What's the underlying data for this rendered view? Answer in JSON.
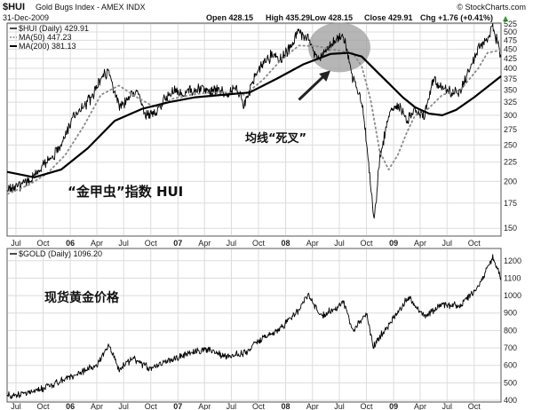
{
  "header": {
    "symbol": "$HUI",
    "name": "Gold Bugs Index - AMEX INDX",
    "date": "31-Dec-2009",
    "open": "Open 428.15",
    "high": "High 435.29",
    "low": "Low 428.15",
    "close": "Close 429.91",
    "chg": "Chg +1.76 (+0.41%)",
    "chg_arrow": "▲",
    "credit": "© StockCharts.com"
  },
  "colors": {
    "background": "#ffffff",
    "price_line": "#000000",
    "ma50": "#8a8a8a",
    "ma200": "#000000",
    "highlight": "#9e9e9e",
    "grid": "#dcdcdc"
  },
  "chart_data": [
    {
      "type": "line",
      "title": "$HUI (Daily) 429.91",
      "y_scale": "log",
      "ylim": [
        143,
        528
      ],
      "yticks": [
        150,
        175,
        200,
        225,
        250,
        275,
        300,
        325,
        350,
        375,
        400,
        425,
        450,
        475,
        500,
        525
      ],
      "grid": true,
      "legend_position": "top-left",
      "legend": [
        "$HUI (Daily) 429.91",
        "MA(50) 447.23",
        "MA(200) 381.13"
      ],
      "xlim": [
        "2005-06-01",
        "2009-12-31"
      ],
      "x_tick_labels": [
        "Jul",
        "Oct",
        "06",
        "Apr",
        "Jul",
        "Oct",
        "07",
        "Apr",
        "Jul",
        "Oct",
        "08",
        "Apr",
        "Jul",
        "Oct",
        "09",
        "Apr",
        "Jul",
        "Oct"
      ],
      "x_tick_dates": [
        "2005-07-01",
        "2005-10-01",
        "2006-01-01",
        "2006-04-01",
        "2006-07-01",
        "2006-10-01",
        "2007-01-01",
        "2007-04-01",
        "2007-07-01",
        "2007-10-01",
        "2008-01-01",
        "2008-04-01",
        "2008-07-01",
        "2008-10-01",
        "2009-01-01",
        "2009-04-01",
        "2009-07-01",
        "2009-10-01"
      ],
      "x_tick_bold": [
        false,
        false,
        true,
        false,
        false,
        false,
        true,
        false,
        false,
        false,
        true,
        false,
        false,
        false,
        true,
        false,
        false,
        false
      ],
      "series": [
        {
          "name": "$HUI (Daily) 429.91",
          "style": "price",
          "x": [
            "2005-06-01",
            "2005-07-15",
            "2005-08-15",
            "2005-09-15",
            "2005-10-15",
            "2005-11-15",
            "2005-12-15",
            "2006-01-15",
            "2006-02-15",
            "2006-03-15",
            "2006-04-15",
            "2006-05-10",
            "2006-06-15",
            "2006-07-15",
            "2006-08-15",
            "2006-09-15",
            "2006-10-15",
            "2006-11-15",
            "2006-12-15",
            "2007-01-15",
            "2007-02-15",
            "2007-03-15",
            "2007-04-15",
            "2007-05-15",
            "2007-06-15",
            "2007-07-15",
            "2007-08-15",
            "2007-09-15",
            "2007-10-15",
            "2007-11-15",
            "2007-12-15",
            "2008-01-15",
            "2008-02-15",
            "2008-03-15",
            "2008-04-15",
            "2008-05-15",
            "2008-06-15",
            "2008-07-15",
            "2008-08-15",
            "2008-09-15",
            "2008-10-01",
            "2008-10-27",
            "2008-11-15",
            "2008-12-15",
            "2009-01-15",
            "2009-02-15",
            "2009-03-15",
            "2009-04-15",
            "2009-05-15",
            "2009-06-15",
            "2009-07-15",
            "2009-08-15",
            "2009-09-15",
            "2009-10-15",
            "2009-11-15",
            "2009-12-03",
            "2009-12-31"
          ],
          "values": [
            190,
            196,
            200,
            213,
            228,
            240,
            265,
            300,
            318,
            335,
            372,
            395,
            318,
            332,
            345,
            300,
            305,
            330,
            348,
            340,
            350,
            355,
            345,
            352,
            340,
            355,
            320,
            375,
            410,
            435,
            420,
            455,
            500,
            480,
            425,
            440,
            470,
            488,
            380,
            325,
            255,
            155,
            230,
            300,
            320,
            290,
            310,
            300,
            370,
            355,
            345,
            345,
            400,
            450,
            475,
            520,
            429.91
          ]
        },
        {
          "name": "MA(50) 447.23",
          "style": "ma50",
          "x": [
            "2005-06-01",
            "2005-08-15",
            "2005-10-15",
            "2005-12-15",
            "2006-02-15",
            "2006-04-15",
            "2006-06-15",
            "2006-08-15",
            "2006-10-15",
            "2006-12-15",
            "2007-02-15",
            "2007-04-15",
            "2007-06-15",
            "2007-08-15",
            "2007-10-15",
            "2007-12-15",
            "2008-02-15",
            "2008-04-15",
            "2008-06-15",
            "2008-08-15",
            "2008-09-15",
            "2008-10-15",
            "2008-11-15",
            "2008-12-15",
            "2009-01-15",
            "2009-02-15",
            "2009-03-15",
            "2009-04-15",
            "2009-06-15",
            "2009-08-15",
            "2009-10-15",
            "2009-11-15",
            "2009-12-31"
          ],
          "values": [
            185,
            196,
            210,
            235,
            280,
            340,
            360,
            335,
            315,
            332,
            340,
            345,
            345,
            340,
            372,
            420,
            460,
            458,
            448,
            440,
            405,
            330,
            240,
            215,
            235,
            270,
            300,
            305,
            340,
            350,
            400,
            440,
            447.23
          ]
        },
        {
          "name": "MA(200) 381.13",
          "style": "ma200",
          "x": [
            "2005-06-01",
            "2005-09-01",
            "2005-12-01",
            "2006-03-01",
            "2006-06-01",
            "2006-09-01",
            "2006-12-01",
            "2007-03-01",
            "2007-06-01",
            "2007-09-01",
            "2007-12-01",
            "2008-03-01",
            "2008-06-01",
            "2008-08-01",
            "2008-09-15",
            "2008-11-01",
            "2008-12-15",
            "2009-02-01",
            "2009-03-15",
            "2009-05-01",
            "2009-06-15",
            "2009-08-01",
            "2009-10-01",
            "2009-12-31"
          ],
          "values": [
            212,
            205,
            215,
            245,
            290,
            312,
            325,
            335,
            340,
            345,
            375,
            410,
            437,
            440,
            430,
            395,
            365,
            335,
            315,
            303,
            300,
            310,
            335,
            381.13
          ]
        }
      ],
      "annotations": {
        "label_hui": "“金甲虫”指数  HUI",
        "label_cross": "均线“死叉”",
        "highlight_date": "2008-07-01",
        "highlight_value": 455,
        "arrow_from_date": "2008-02-15",
        "arrow_from_value": 330,
        "arrow_to_date": "2008-06-01",
        "arrow_to_value": 395
      }
    },
    {
      "type": "line",
      "title": "$GOLD (Daily) 1096.20",
      "ylim": [
        390,
        1270
      ],
      "yticks": [
        400,
        500,
        600,
        700,
        800,
        900,
        1000,
        1100,
        1200
      ],
      "grid": true,
      "legend_position": "top-left",
      "legend": [
        "$GOLD (Daily) 1096.20"
      ],
      "xlim": [
        "2005-06-01",
        "2009-12-31"
      ],
      "x_tick_labels": [
        "Jul",
        "Oct",
        "06",
        "Apr",
        "Jul",
        "Oct",
        "07",
        "Apr",
        "Jul",
        "Oct",
        "08",
        "Apr",
        "Jul",
        "Oct",
        "09",
        "Apr",
        "Jul",
        "Oct"
      ],
      "x_tick_dates": [
        "2005-07-01",
        "2005-10-01",
        "2006-01-01",
        "2006-04-01",
        "2006-07-01",
        "2006-10-01",
        "2007-01-01",
        "2007-04-01",
        "2007-07-01",
        "2007-10-01",
        "2008-01-01",
        "2008-04-01",
        "2008-07-01",
        "2008-10-01",
        "2009-01-01",
        "2009-04-01",
        "2009-07-01",
        "2009-10-01"
      ],
      "x_tick_bold": [
        false,
        false,
        true,
        false,
        false,
        false,
        true,
        false,
        false,
        false,
        true,
        false,
        false,
        false,
        true,
        false,
        false,
        false
      ],
      "series": [
        {
          "name": "$GOLD (Daily) 1096.20",
          "style": "price",
          "x": [
            "2005-06-01",
            "2005-08-01",
            "2005-10-01",
            "2005-12-01",
            "2006-02-01",
            "2006-04-01",
            "2006-05-12",
            "2006-06-15",
            "2006-08-01",
            "2006-10-01",
            "2006-12-01",
            "2007-02-15",
            "2007-04-15",
            "2007-06-15",
            "2007-08-15",
            "2007-10-15",
            "2007-12-15",
            "2008-02-15",
            "2008-03-17",
            "2008-05-01",
            "2008-07-15",
            "2008-08-15",
            "2008-10-01",
            "2008-10-24",
            "2008-12-15",
            "2009-02-20",
            "2009-04-15",
            "2009-06-15",
            "2009-08-15",
            "2009-10-15",
            "2009-12-03",
            "2009-12-31"
          ],
          "values": [
            425,
            440,
            470,
            510,
            560,
            600,
            720,
            580,
            640,
            580,
            630,
            670,
            690,
            650,
            670,
            760,
            810,
            920,
            1010,
            880,
            960,
            800,
            900,
            710,
            830,
            990,
            880,
            950,
            940,
            1050,
            1220,
            1096.2
          ]
        }
      ],
      "annotations": {
        "label_gold": "现货黄金价格"
      }
    }
  ]
}
